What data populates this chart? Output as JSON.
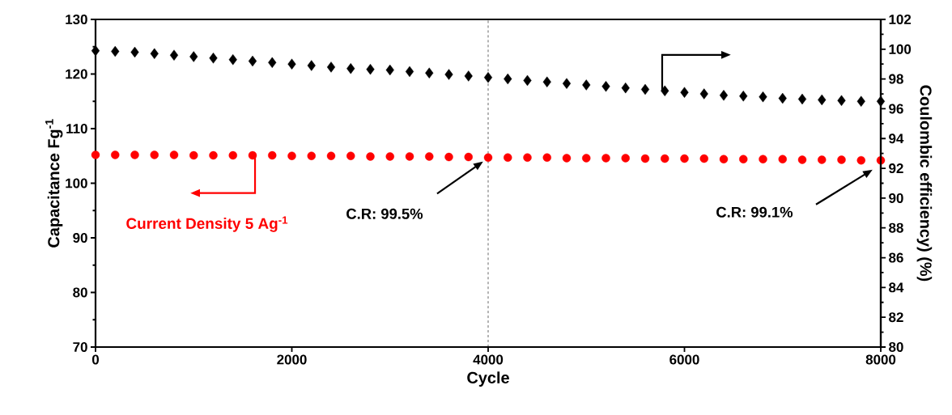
{
  "chart_data": {
    "type": "scatter",
    "xlabel": "Cycle",
    "ylabel": "Capacitance Fg$^{-1}$",
    "y2label": "Coulombic efficiency) (%)",
    "x": [
      0,
      200,
      400,
      600,
      800,
      1000,
      1200,
      1400,
      1600,
      1800,
      2000,
      2200,
      2400,
      2600,
      2800,
      3000,
      3200,
      3400,
      3600,
      3800,
      4000,
      4200,
      4400,
      4600,
      4800,
      5000,
      5200,
      5400,
      5600,
      5800,
      6000,
      6200,
      6400,
      6600,
      6800,
      7000,
      7200,
      7400,
      7600,
      7800,
      8000
    ],
    "series": [
      {
        "color": "#ff0000",
        "marker": "circle",
        "values": [
          105.2,
          105.2,
          105.2,
          105.2,
          105.2,
          105.1,
          105.1,
          105.1,
          105.1,
          105.1,
          105.0,
          105.0,
          105.0,
          105.0,
          104.9,
          104.9,
          104.9,
          104.9,
          104.8,
          104.8,
          104.7,
          104.7,
          104.7,
          104.7,
          104.6,
          104.6,
          104.6,
          104.6,
          104.5,
          104.5,
          104.5,
          104.5,
          104.4,
          104.4,
          104.4,
          104.4,
          104.3,
          104.3,
          104.3,
          104.2,
          104.2
        ]
      },
      {
        "color": "#000000",
        "marker": "diamond",
        "axis": "y2",
        "values": [
          99.9,
          99.85,
          99.8,
          99.7,
          99.6,
          99.5,
          99.4,
          99.3,
          99.2,
          99.1,
          99.0,
          98.9,
          98.8,
          98.7,
          98.65,
          98.6,
          98.5,
          98.4,
          98.3,
          98.2,
          98.1,
          98.0,
          97.9,
          97.8,
          97.7,
          97.6,
          97.5,
          97.4,
          97.3,
          97.2,
          97.1,
          97.0,
          96.9,
          96.85,
          96.8,
          96.7,
          96.65,
          96.6,
          96.55,
          96.5,
          96.5
        ]
      }
    ],
    "xlim": [
      0,
      8000
    ],
    "xticks": [
      0,
      2000,
      4000,
      6000,
      8000
    ],
    "ylim": [
      70,
      130
    ],
    "yticks": [
      70,
      80,
      90,
      100,
      110,
      120,
      130
    ],
    "y2lim": [
      80,
      102
    ],
    "y2ticks": [
      80,
      82,
      84,
      86,
      88,
      90,
      92,
      94,
      96,
      98,
      100,
      102
    ],
    "ref_lines": [
      {
        "axis": "x",
        "value": 4000,
        "line_style": "dashed",
        "color": "#000000"
      }
    ],
    "annotations": [
      "C.R: 99.5%",
      "C.R: 99.1%",
      "Current Density 5 Ag$^{-1}$"
    ]
  }
}
